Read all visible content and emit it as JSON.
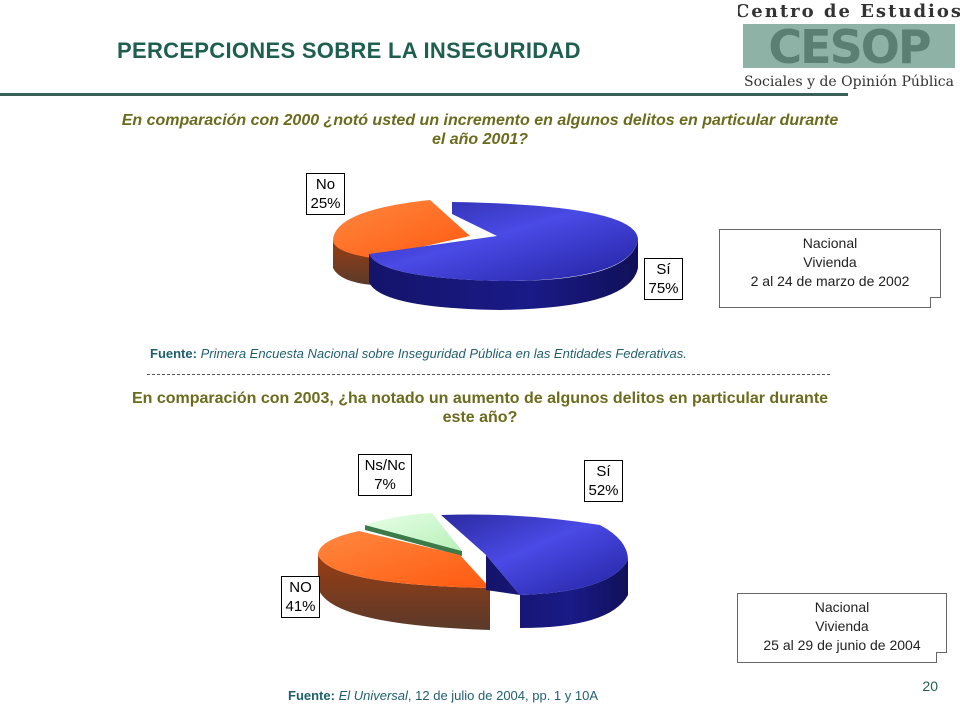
{
  "header": {
    "title": "PERCEPCIONES SOBRE LA INSEGURIDAD",
    "logo_line1": "Centro de Estudios",
    "logo_mark": "CESOP",
    "logo_line2": "Sociales y de Opinión Pública"
  },
  "chart_data": [
    {
      "type": "pie",
      "title": "En comparación con 2000 ¿notó usted un incremento en algunos delitos en particular durante el año 2001?",
      "categories": [
        "Sí",
        "No"
      ],
      "values": [
        75,
        25
      ],
      "labels": [
        "Sí\n75%",
        "No\n25%"
      ],
      "colors": [
        "#3333cc",
        "#ff6622"
      ]
    },
    {
      "type": "pie",
      "title": "En comparación con 2003, ¿ha notado un aumento de algunos delitos en particular durante este año?",
      "categories": [
        "Sí",
        "NO",
        "Ns/Nc"
      ],
      "values": [
        52,
        41,
        7
      ],
      "labels": [
        "Sí\n52%",
        "NO\n41%",
        "Ns/Nc\n7%"
      ],
      "colors": [
        "#3333cc",
        "#ff6622",
        "#ccffcc"
      ]
    }
  ],
  "source1": {
    "prefix": "Fuente:",
    "text": " Primera Encuesta Nacional sobre Inseguridad Pública en las Entidades Federativas."
  },
  "source2": {
    "prefix": "Fuente:",
    "italic": " El Universal",
    "text": ", 12 de julio de 2004, pp. 1 y 10A"
  },
  "note1": {
    "line1": "Nacional",
    "line2": "Vivienda",
    "line3": "2 al 24 de marzo de 2002"
  },
  "note2": {
    "line1": "Nacional",
    "line2": "Vivienda",
    "line3": "25 al 29 de junio de 2004"
  },
  "page_number": "20"
}
